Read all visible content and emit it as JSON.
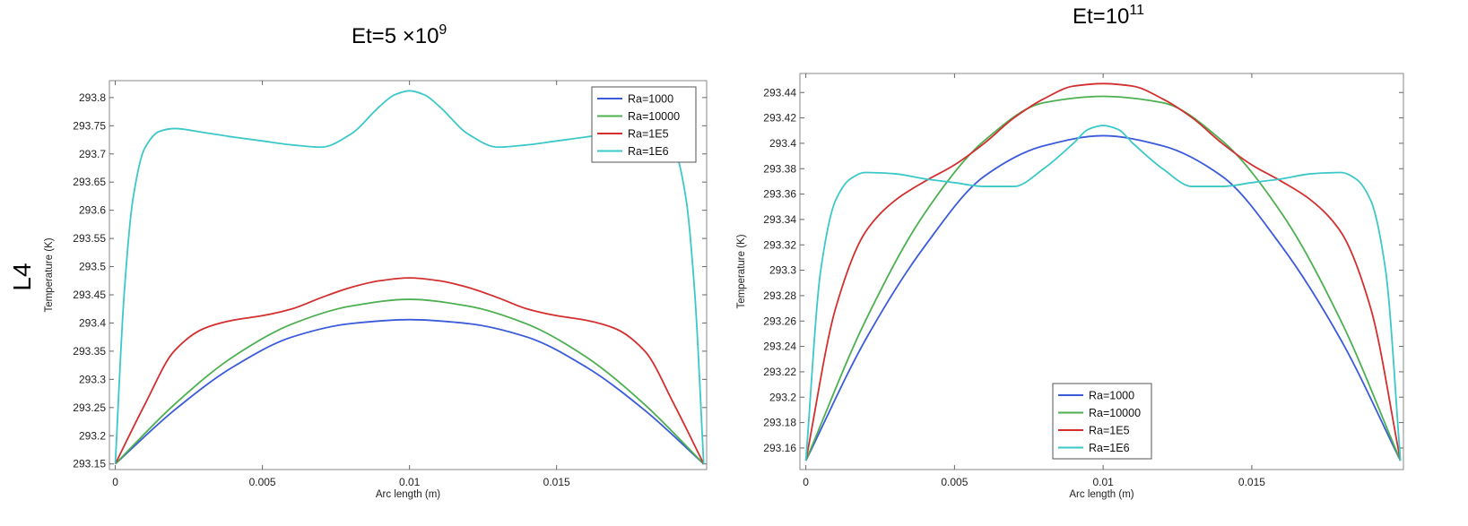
{
  "row_label": "L4",
  "panels": [
    {
      "title_base": "Et=5  ×10",
      "title_exp": "9"
    },
    {
      "title_base": "Et=10",
      "title_exp": "11"
    }
  ],
  "chart_data": [
    {
      "type": "line",
      "xlabel": "Arc length (m)",
      "ylabel": "Temperature (K)",
      "xlim": [
        -0.0002,
        0.0201
      ],
      "ylim": [
        293.14,
        293.83
      ],
      "xticks": [
        {
          "v": 0,
          "label": "0"
        },
        {
          "v": 0.005,
          "label": "0.005"
        },
        {
          "v": 0.01,
          "label": "0.01"
        },
        {
          "v": 0.015,
          "label": "0.015"
        }
      ],
      "yticks": [
        {
          "v": 293.15,
          "label": "293.15"
        },
        {
          "v": 293.2,
          "label": "293.2"
        },
        {
          "v": 293.25,
          "label": "293.25"
        },
        {
          "v": 293.3,
          "label": "293.3"
        },
        {
          "v": 293.35,
          "label": "293.35"
        },
        {
          "v": 293.4,
          "label": "293.4"
        },
        {
          "v": 293.45,
          "label": "293.45"
        },
        {
          "v": 293.5,
          "label": "293.5"
        },
        {
          "v": 293.55,
          "label": "293.55"
        },
        {
          "v": 293.6,
          "label": "293.6"
        },
        {
          "v": 293.65,
          "label": "293.65"
        },
        {
          "v": 293.7,
          "label": "293.7"
        },
        {
          "v": 293.75,
          "label": "293.75"
        },
        {
          "v": 293.8,
          "label": "293.8"
        }
      ],
      "grid": false,
      "legend_position": "top-right",
      "series": [
        {
          "name": "Ra=1000",
          "color": "#3b5bdb",
          "x": [
            0,
            0.002,
            0.004,
            0.006,
            0.008,
            0.01,
            0.012,
            0.014,
            0.016,
            0.018,
            0.02
          ],
          "y": [
            293.15,
            293.245,
            293.322,
            293.375,
            293.399,
            293.406,
            293.399,
            293.375,
            293.322,
            293.245,
            293.15
          ]
        },
        {
          "name": "Ra=10000",
          "color": "#4caf50",
          "x": [
            0,
            0.002,
            0.004,
            0.006,
            0.008,
            0.01,
            0.012,
            0.014,
            0.016,
            0.018,
            0.02
          ],
          "y": [
            293.15,
            293.255,
            293.34,
            293.398,
            293.43,
            293.442,
            293.43,
            293.398,
            293.34,
            293.255,
            293.15
          ]
        },
        {
          "name": "Ra=1E5",
          "color": "#d32f2f",
          "x": [
            0,
            0.001,
            0.002,
            0.003,
            0.004,
            0.005,
            0.006,
            0.007,
            0.008,
            0.009,
            0.01,
            0.011,
            0.012,
            0.013,
            0.014,
            0.015,
            0.016,
            0.017,
            0.018,
            0.019,
            0.02
          ],
          "y": [
            293.15,
            293.255,
            293.35,
            293.39,
            293.405,
            293.413,
            293.425,
            293.445,
            293.463,
            293.475,
            293.48,
            293.475,
            293.463,
            293.445,
            293.425,
            293.413,
            293.405,
            293.39,
            293.35,
            293.255,
            293.15
          ]
        },
        {
          "name": "Ra=1E6",
          "color": "#3cc8c8",
          "x": [
            0,
            0.0003,
            0.0006,
            0.001,
            0.0015,
            0.002,
            0.003,
            0.004,
            0.005,
            0.006,
            0.007,
            0.008,
            0.009,
            0.0095,
            0.01,
            0.0105,
            0.011,
            0.012,
            0.013,
            0.014,
            0.015,
            0.016,
            0.017,
            0.018,
            0.0185,
            0.019,
            0.0194,
            0.0197,
            0.02
          ],
          "y": [
            293.15,
            293.45,
            293.62,
            293.71,
            293.74,
            293.745,
            293.738,
            293.73,
            293.723,
            293.716,
            293.712,
            293.735,
            293.785,
            293.805,
            293.812,
            293.805,
            293.785,
            293.735,
            293.712,
            293.716,
            293.723,
            293.73,
            293.738,
            293.745,
            293.74,
            293.71,
            293.62,
            293.45,
            293.15
          ]
        }
      ]
    },
    {
      "type": "line",
      "xlabel": "Arc length (m)",
      "ylabel": "Temperature (K)",
      "xlim": [
        -0.0002,
        0.0201
      ],
      "ylim": [
        293.143,
        293.455
      ],
      "xticks": [
        {
          "v": 0,
          "label": "0"
        },
        {
          "v": 0.005,
          "label": "0.005"
        },
        {
          "v": 0.01,
          "label": "0.01"
        },
        {
          "v": 0.015,
          "label": "0.015"
        }
      ],
      "yticks": [
        {
          "v": 293.16,
          "label": "293.16"
        },
        {
          "v": 293.18,
          "label": "293.18"
        },
        {
          "v": 293.2,
          "label": "293.2"
        },
        {
          "v": 293.22,
          "label": "293.22"
        },
        {
          "v": 293.24,
          "label": "293.24"
        },
        {
          "v": 293.26,
          "label": "293.26"
        },
        {
          "v": 293.28,
          "label": "293.28"
        },
        {
          "v": 293.3,
          "label": "293.3"
        },
        {
          "v": 293.32,
          "label": "293.32"
        },
        {
          "v": 293.34,
          "label": "293.34"
        },
        {
          "v": 293.36,
          "label": "293.36"
        },
        {
          "v": 293.38,
          "label": "293.38"
        },
        {
          "v": 293.4,
          "label": "293.4"
        },
        {
          "v": 293.42,
          "label": "293.42"
        },
        {
          "v": 293.44,
          "label": "293.44"
        }
      ],
      "grid": false,
      "legend_position": "bottom-center",
      "series": [
        {
          "name": "Ra=1000",
          "color": "#3b5bdb",
          "x": [
            0,
            0.002,
            0.004,
            0.006,
            0.008,
            0.01,
            0.012,
            0.014,
            0.016,
            0.018,
            0.02
          ],
          "y": [
            293.15,
            293.245,
            293.319,
            293.374,
            293.398,
            293.406,
            293.398,
            293.374,
            293.319,
            293.245,
            293.15
          ]
        },
        {
          "name": "Ra=10000",
          "color": "#4caf50",
          "x": [
            0,
            0.002,
            0.004,
            0.006,
            0.008,
            0.01,
            0.012,
            0.014,
            0.016,
            0.018,
            0.02
          ],
          "y": [
            293.15,
            293.26,
            293.345,
            293.402,
            293.432,
            293.437,
            293.432,
            293.402,
            293.345,
            293.26,
            293.15
          ]
        },
        {
          "name": "Ra=1E5",
          "color": "#d32f2f",
          "x": [
            0,
            0.001,
            0.002,
            0.003,
            0.004,
            0.005,
            0.006,
            0.007,
            0.008,
            0.009,
            0.01,
            0.011,
            0.012,
            0.013,
            0.014,
            0.015,
            0.016,
            0.017,
            0.018,
            0.019,
            0.02
          ],
          "y": [
            293.15,
            293.27,
            293.33,
            293.355,
            293.37,
            293.383,
            293.4,
            293.42,
            293.435,
            293.445,
            293.447,
            293.445,
            293.435,
            293.42,
            293.4,
            293.383,
            293.37,
            293.355,
            293.33,
            293.27,
            293.15
          ]
        },
        {
          "name": "Ra=1E6",
          "color": "#3cc8c8",
          "x": [
            0,
            0.0005,
            0.001,
            0.0015,
            0.002,
            0.003,
            0.004,
            0.005,
            0.006,
            0.007,
            0.008,
            0.009,
            0.0095,
            0.01,
            0.0105,
            0.011,
            0.012,
            0.013,
            0.014,
            0.015,
            0.016,
            0.017,
            0.018,
            0.0185,
            0.019,
            0.0195,
            0.02
          ],
          "y": [
            293.15,
            293.3,
            293.355,
            293.372,
            293.377,
            293.376,
            293.372,
            293.369,
            293.366,
            293.366,
            293.38,
            293.4,
            293.411,
            293.414,
            293.411,
            293.4,
            293.38,
            293.366,
            293.366,
            293.369,
            293.372,
            293.376,
            293.377,
            293.372,
            293.355,
            293.3,
            293.15
          ]
        }
      ]
    }
  ]
}
